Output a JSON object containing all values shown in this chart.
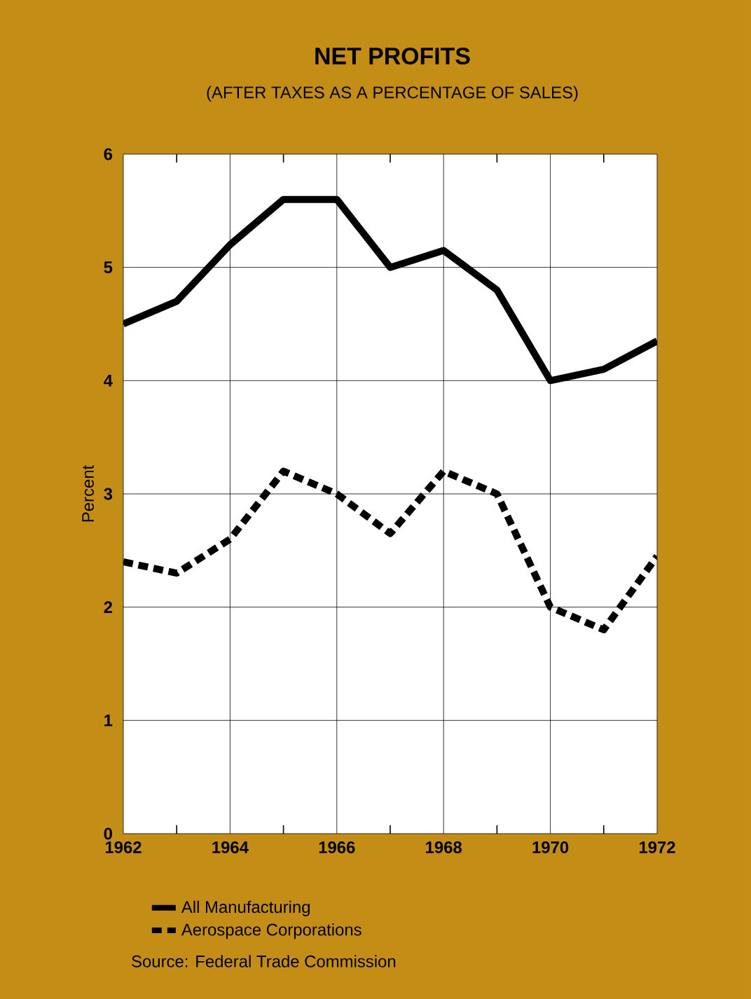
{
  "chart_data": {
    "type": "line",
    "title": "NET PROFITS",
    "subtitle": "(AFTER TAXES AS A PERCENTAGE OF SALES)",
    "ylabel": "Percent",
    "x": [
      1962,
      1963,
      1964,
      1965,
      1966,
      1967,
      1968,
      1969,
      1970,
      1971,
      1972
    ],
    "series": [
      {
        "name": "All Manufacturing",
        "color": "#000000",
        "line_style": "solid",
        "values": [
          4.5,
          4.7,
          5.2,
          5.6,
          5.6,
          5.0,
          5.15,
          4.8,
          4.0,
          4.1,
          4.35
        ]
      },
      {
        "name": "Aerospace Corporations",
        "color": "#000000",
        "line_style": "dashed",
        "values": [
          2.4,
          2.3,
          2.6,
          3.2,
          3.0,
          2.65,
          3.2,
          3.0,
          2.0,
          1.8,
          2.45
        ]
      }
    ],
    "xlim": [
      1962,
      1972
    ],
    "ylim": [
      0,
      6
    ],
    "xticks": [
      1962,
      {
        "value": 1963,
        "label": null
      },
      1964,
      {
        "value": 1965,
        "label": null
      },
      1966,
      {
        "value": 1967,
        "label": null
      },
      1968,
      {
        "value": 1969,
        "label": null
      },
      1970,
      {
        "value": 1971,
        "label": null
      },
      1972
    ],
    "yticks": [
      0,
      1,
      2,
      3,
      4,
      5,
      6
    ],
    "grid": true,
    "legend": "bottom",
    "marker": "none",
    "annotations": [
      "Source: Federal Trade Commission"
    ]
  }
}
